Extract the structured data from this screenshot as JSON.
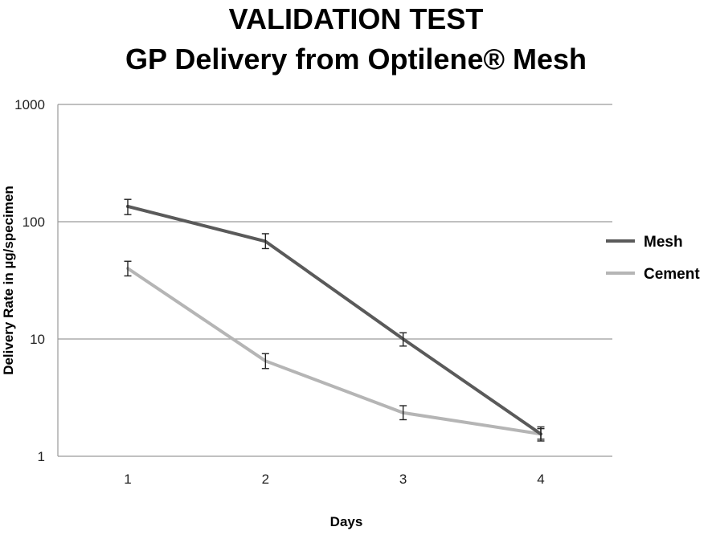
{
  "chart_data": {
    "type": "line",
    "title": "VALIDATION TEST",
    "subtitle": "GP Delivery from Optilene® Mesh",
    "xlabel": "Days",
    "ylabel": "Delivery Rate in µg/specimen",
    "y_scale": "log",
    "ylim": [
      1,
      1000
    ],
    "y_ticks": [
      "1",
      "10",
      "100",
      "1000"
    ],
    "categories": [
      "1",
      "2",
      "3",
      "4"
    ],
    "grid": "horizontal",
    "legend_position": "right",
    "series": [
      {
        "name": "Mesh",
        "color": "#5a5a5a",
        "values": [
          135,
          68,
          10,
          1.55
        ],
        "error_low": [
          115,
          59,
          8.7,
          1.35
        ],
        "error_high": [
          155,
          79,
          11.3,
          1.78
        ]
      },
      {
        "name": "Cement",
        "color": "#b5b5b5",
        "values": [
          40,
          6.5,
          2.35,
          1.55
        ],
        "error_low": [
          34.5,
          5.6,
          2.05,
          1.4
        ],
        "error_high": [
          46,
          7.5,
          2.7,
          1.72
        ]
      }
    ]
  }
}
